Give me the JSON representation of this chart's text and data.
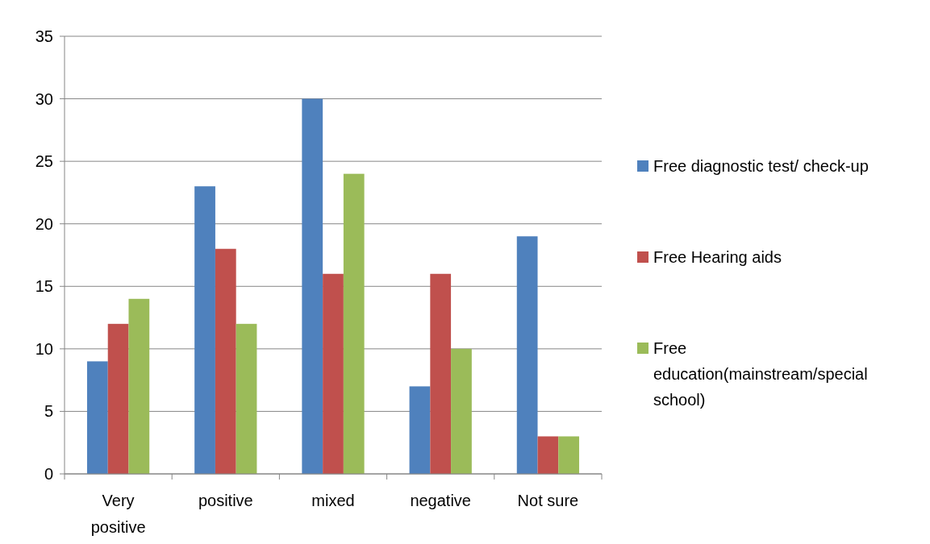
{
  "chart_data": {
    "type": "bar",
    "categories": [
      "Very positive",
      "positive",
      "mixed",
      "negative",
      "Not sure"
    ],
    "series": [
      {
        "name": "Free diagnostic test/ check-up",
        "color": "#4f81bd",
        "values": [
          9,
          23,
          30,
          7,
          19
        ]
      },
      {
        "name": "Free Hearing aids",
        "color": "#c0504d",
        "values": [
          12,
          18,
          16,
          16,
          3
        ]
      },
      {
        "name": "Free education(mainstream/special school)",
        "color": "#9bbb59",
        "values": [
          14,
          12,
          24,
          10,
          3
        ]
      }
    ],
    "ylim": [
      0,
      35
    ],
    "yticks": [
      0,
      5,
      10,
      15,
      20,
      25,
      30,
      35
    ],
    "grid": "y",
    "legend": "right"
  }
}
